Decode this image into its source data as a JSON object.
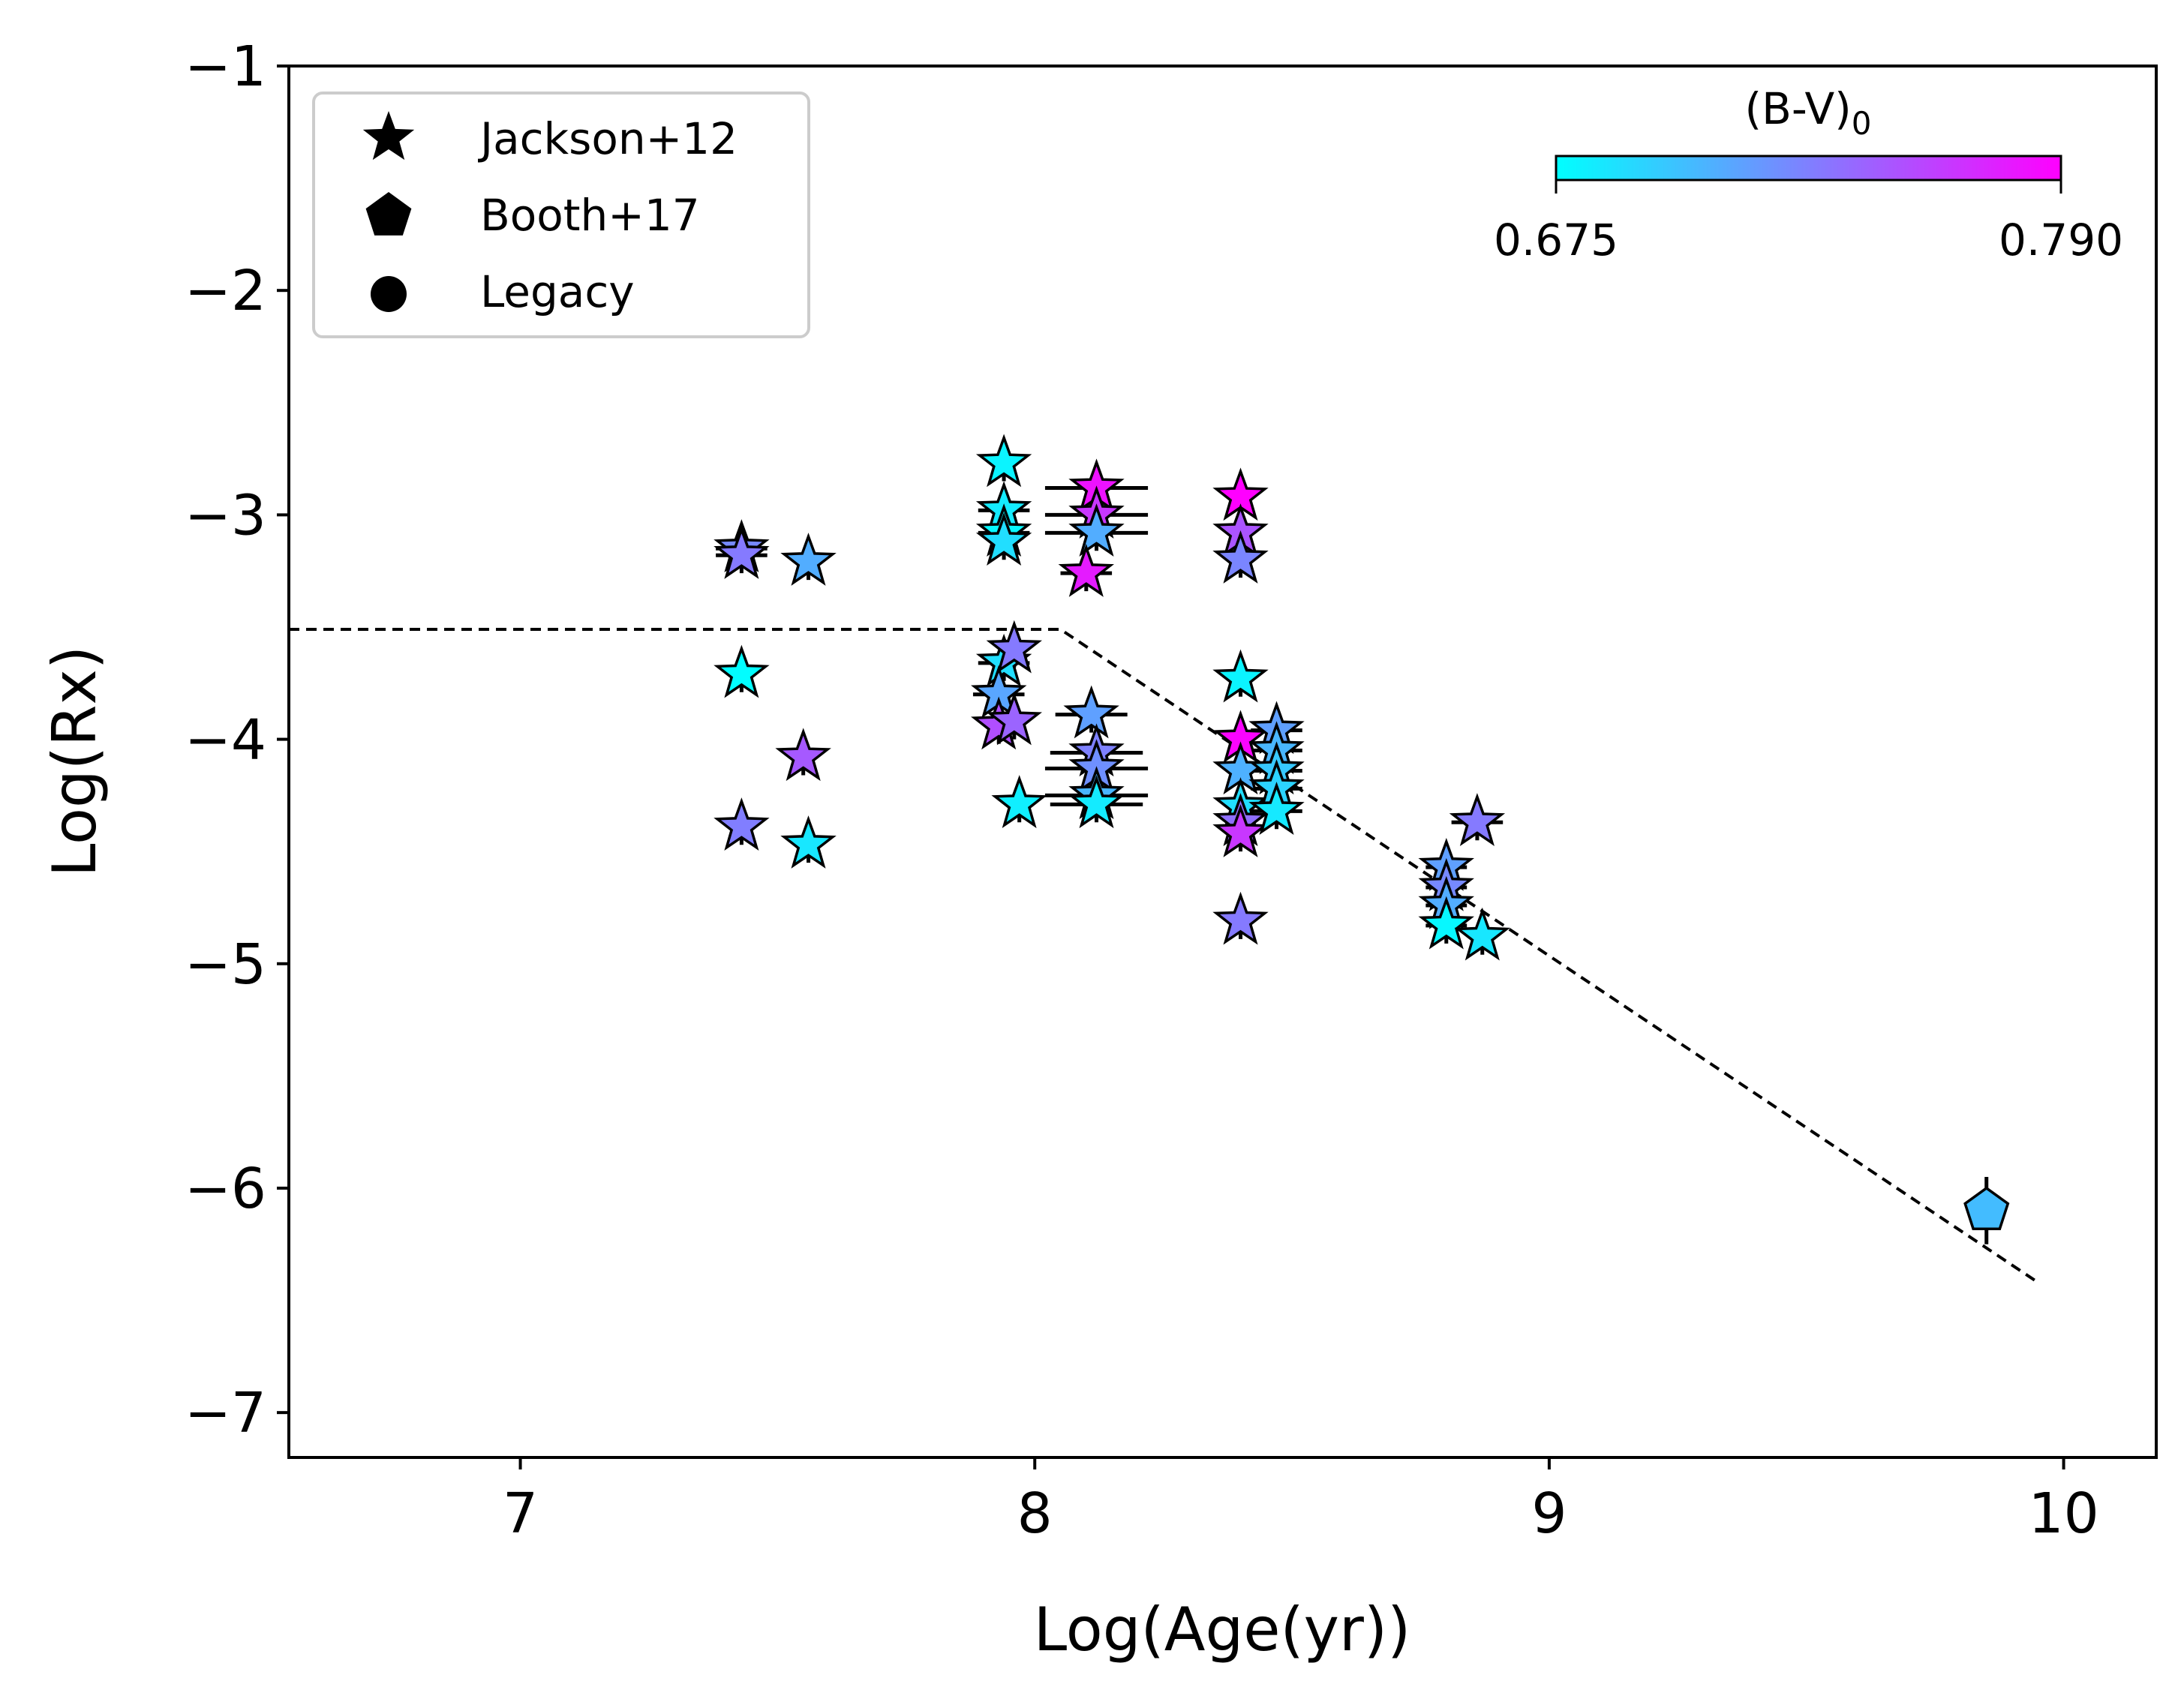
{
  "chart_data": {
    "type": "scatter",
    "title": "",
    "xlabel": "Log(Age(yr))",
    "ylabel": "Log(Rx)",
    "xlim": [
      6.55,
      10.18
    ],
    "ylim": [
      -7.2,
      -1.0
    ],
    "xticks": [
      7,
      8,
      9,
      10
    ],
    "xtick_labels": [
      "7",
      "8",
      "9",
      "10"
    ],
    "yticks": [
      -1,
      -2,
      -3,
      -4,
      -5,
      -6,
      -7
    ],
    "ytick_labels": [
      "−1",
      "−2",
      "−3",
      "−4",
      "−5",
      "−6",
      "−7"
    ],
    "grid": false,
    "legend": {
      "placement": "top-left",
      "entries": [
        {
          "label": "Jackson+12",
          "marker": "star"
        },
        {
          "label": "Booth+17",
          "marker": "pentagon"
        },
        {
          "label": "Legacy",
          "marker": "circle"
        }
      ]
    },
    "colorbar": {
      "title": "(B-V)",
      "title_subscript": "0",
      "min": 0.675,
      "max": 0.79,
      "min_label": "0.675",
      "max_label": "0.790",
      "cmap": [
        "#00ffff",
        "#ff00ff"
      ],
      "placement": "top-right"
    },
    "fit_line": {
      "style": "dashed",
      "points": [
        [
          6.55,
          -3.51
        ],
        [
          8.05,
          -3.51
        ],
        [
          9.95,
          -6.42
        ]
      ]
    },
    "series": [
      {
        "name": "Jackson+12",
        "marker": "star",
        "points": [
          {
            "x": 7.43,
            "y": -3.15,
            "bv": 0.728,
            "xerr": 0.05,
            "yerr": 0.08
          },
          {
            "x": 7.43,
            "y": -3.18,
            "bv": 0.735,
            "xerr": 0.05,
            "yerr": 0.08
          },
          {
            "x": 7.56,
            "y": -3.21,
            "bv": 0.712,
            "yerr": 0.08
          },
          {
            "x": 7.43,
            "y": -3.71,
            "bv": 0.676,
            "yerr": 0.08
          },
          {
            "x": 7.55,
            "y": -4.08,
            "bv": 0.75,
            "yerr": 0.08
          },
          {
            "x": 7.43,
            "y": -4.39,
            "bv": 0.733,
            "yerr": 0.08
          },
          {
            "x": 7.56,
            "y": -4.47,
            "bv": 0.686,
            "yerr": 0.08
          },
          {
            "x": 7.94,
            "y": -2.77,
            "bv": 0.68,
            "yerr": 0.08
          },
          {
            "x": 7.94,
            "y": -2.98,
            "bv": 0.684,
            "xerr": 0.05,
            "yerr": 0.08
          },
          {
            "x": 7.94,
            "y": -3.08,
            "bv": 0.678,
            "xerr": 0.05,
            "yerr": 0.08
          },
          {
            "x": 7.94,
            "y": -3.12,
            "bv": 0.69,
            "yerr": 0.08
          },
          {
            "x": 7.94,
            "y": -3.66,
            "bv": 0.69,
            "xerr": 0.05,
            "yerr": 0.08
          },
          {
            "x": 7.96,
            "y": -3.6,
            "bv": 0.735,
            "yerr": 0.08
          },
          {
            "x": 7.93,
            "y": -3.8,
            "bv": 0.715,
            "xerr": 0.05,
            "yerr": 0.08
          },
          {
            "x": 7.93,
            "y": -3.94,
            "bv": 0.755,
            "yerr": 0.08
          },
          {
            "x": 7.96,
            "y": -3.92,
            "bv": 0.745,
            "yerr": 0.08
          },
          {
            "x": 7.97,
            "y": -4.29,
            "bv": 0.682,
            "yerr": 0.08
          },
          {
            "x": 8.12,
            "y": -2.88,
            "bv": 0.782,
            "xerr": 0.1,
            "yerr": 0.08
          },
          {
            "x": 8.12,
            "y": -3.0,
            "bv": 0.765,
            "xerr": 0.1,
            "yerr": 0.08
          },
          {
            "x": 8.12,
            "y": -3.08,
            "bv": 0.712,
            "xerr": 0.1,
            "yerr": 0.08
          },
          {
            "x": 8.1,
            "y": -3.26,
            "bv": 0.778,
            "xerr": 0.05,
            "yerr": 0.08
          },
          {
            "x": 8.11,
            "y": -3.89,
            "bv": 0.718,
            "xerr": 0.07,
            "yerr": 0.08
          },
          {
            "x": 8.12,
            "y": -4.06,
            "bv": 0.732,
            "xerr": 0.09,
            "yerr": 0.08
          },
          {
            "x": 8.12,
            "y": -4.13,
            "bv": 0.725,
            "xerr": 0.1,
            "yerr": 0.08
          },
          {
            "x": 8.12,
            "y": -4.25,
            "bv": 0.708,
            "xerr": 0.1,
            "yerr": 0.08
          },
          {
            "x": 8.12,
            "y": -4.29,
            "bv": 0.684,
            "xerr": 0.09,
            "yerr": 0.08
          },
          {
            "x": 8.4,
            "y": -2.92,
            "bv": 0.79,
            "yerr": 0.08
          },
          {
            "x": 8.4,
            "y": -3.08,
            "bv": 0.752,
            "yerr": 0.08
          },
          {
            "x": 8.4,
            "y": -3.2,
            "bv": 0.73,
            "yerr": 0.08
          },
          {
            "x": 8.4,
            "y": -3.73,
            "bv": 0.68,
            "yerr": 0.08
          },
          {
            "x": 8.4,
            "y": -4.0,
            "bv": 0.788,
            "yerr": 0.08
          },
          {
            "x": 8.4,
            "y": -4.14,
            "bv": 0.71,
            "yerr": 0.08
          },
          {
            "x": 8.4,
            "y": -4.3,
            "bv": 0.69,
            "yerr": 0.08
          },
          {
            "x": 8.4,
            "y": -4.37,
            "bv": 0.74,
            "yerr": 0.08
          },
          {
            "x": 8.4,
            "y": -4.42,
            "bv": 0.765,
            "yerr": 0.08
          },
          {
            "x": 8.4,
            "y": -4.81,
            "bv": 0.735,
            "yerr": 0.08
          },
          {
            "x": 8.47,
            "y": -3.96,
            "bv": 0.718,
            "xerr": 0.05,
            "yerr": 0.08
          },
          {
            "x": 8.47,
            "y": -4.05,
            "bv": 0.708,
            "xerr": 0.05,
            "yerr": 0.08
          },
          {
            "x": 8.47,
            "y": -4.14,
            "bv": 0.7,
            "xerr": 0.05,
            "yerr": 0.08
          },
          {
            "x": 8.47,
            "y": -4.22,
            "bv": 0.695,
            "xerr": 0.05,
            "yerr": 0.08
          },
          {
            "x": 8.47,
            "y": -4.32,
            "bv": 0.685,
            "xerr": 0.05,
            "yerr": 0.08
          },
          {
            "x": 8.8,
            "y": -4.57,
            "bv": 0.718,
            "xerr": 0.04,
            "yerr": 0.08
          },
          {
            "x": 8.8,
            "y": -4.66,
            "bv": 0.728,
            "xerr": 0.04,
            "yerr": 0.08
          },
          {
            "x": 8.8,
            "y": -4.74,
            "bv": 0.712,
            "xerr": 0.04,
            "yerr": 0.08
          },
          {
            "x": 8.8,
            "y": -4.83,
            "bv": 0.678,
            "xerr": 0.04,
            "yerr": 0.08
          },
          {
            "x": 8.86,
            "y": -4.37,
            "bv": 0.735,
            "xerr": 0.05,
            "yerr": 0.08
          },
          {
            "x": 8.87,
            "y": -4.88,
            "bv": 0.686,
            "yerr": 0.08
          }
        ]
      },
      {
        "name": "Booth+17",
        "marker": "pentagon",
        "points": [
          {
            "x": 9.85,
            "y": -6.1,
            "bv": 0.705,
            "yerr": 0.15
          }
        ]
      }
    ]
  }
}
